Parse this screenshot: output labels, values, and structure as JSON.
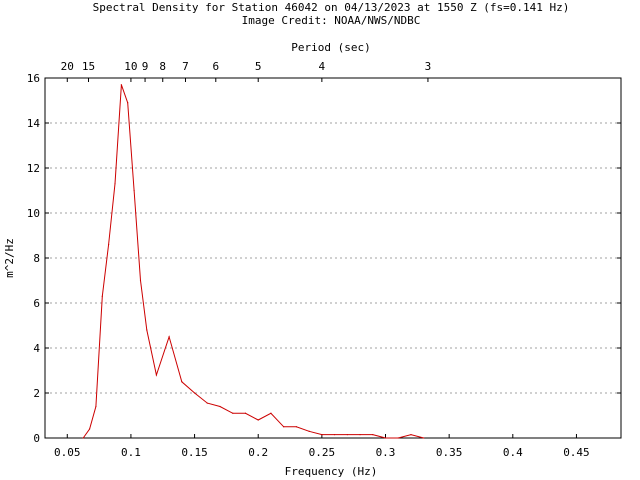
{
  "chart_data": {
    "type": "line",
    "title": "Spectral Density for Station 46042 on 04/13/2023 at 1550 Z (fs=0.141 Hz)",
    "subtitle": "Image Credit: NOAA/NWS/NDBC",
    "xlabel": "Frequency (Hz)",
    "ylabel": "m^2/Hz",
    "top_axis_label": "Period (sec)",
    "xlim": [
      0.0325,
      0.485
    ],
    "ylim": [
      0,
      16
    ],
    "x_ticks": [
      0.05,
      0.1,
      0.15,
      0.2,
      0.25,
      0.3,
      0.35,
      0.4,
      0.45
    ],
    "x_tick_labels": [
      "0.05",
      "0.1",
      "0.15",
      "0.2",
      "0.25",
      "0.3",
      "0.35",
      "0.4",
      "0.45"
    ],
    "y_ticks": [
      0,
      2,
      4,
      6,
      8,
      10,
      12,
      14,
      16
    ],
    "y_tick_labels": [
      "0",
      "2",
      "4",
      "6",
      "8",
      "10",
      "12",
      "14",
      "16"
    ],
    "period_ticks": [
      {
        "label": "20",
        "period": 20
      },
      {
        "label": "15",
        "period": 15
      },
      {
        "label": "10",
        "period": 10
      },
      {
        "label": "9",
        "period": 9
      },
      {
        "label": "8",
        "period": 8
      },
      {
        "label": "7",
        "period": 7
      },
      {
        "label": "6",
        "period": 6
      },
      {
        "label": "5",
        "period": 5
      },
      {
        "label": "4",
        "period": 4
      },
      {
        "label": "3",
        "period": 3
      }
    ],
    "grid": "horizontal dotted",
    "series": [
      {
        "color": "#cc0000",
        "x": [
          0.0625,
          0.0675,
          0.0725,
          0.0775,
          0.0825,
          0.0875,
          0.0925,
          0.0975,
          0.1025,
          0.1075,
          0.1125,
          0.12,
          0.13,
          0.14,
          0.15,
          0.16,
          0.17,
          0.18,
          0.19,
          0.2,
          0.21,
          0.22,
          0.23,
          0.24,
          0.25,
          0.26,
          0.27,
          0.28,
          0.29,
          0.3,
          0.31,
          0.32,
          0.33
        ],
        "y": [
          0.0,
          0.4,
          1.4,
          6.3,
          8.6,
          11.3,
          15.7,
          14.9,
          11.0,
          7.0,
          4.8,
          2.8,
          4.5,
          2.5,
          2.0,
          1.55,
          1.4,
          1.1,
          1.1,
          0.8,
          1.1,
          0.5,
          0.5,
          0.3,
          0.15,
          0.15,
          0.15,
          0.15,
          0.15,
          0.0,
          0.0,
          0.15,
          0.0
        ]
      }
    ]
  }
}
